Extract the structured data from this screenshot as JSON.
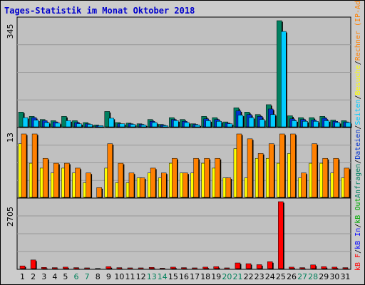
{
  "title": "Tages-Statistik im Monat Oktober 2018",
  "chart_data": [
    {
      "type": "bar",
      "panel": "top",
      "ymax_label": "345",
      "ylim": [
        0,
        345
      ],
      "categories": [
        "1",
        "2",
        "3",
        "4",
        "5",
        "6",
        "7",
        "8",
        "9",
        "10",
        "11",
        "12",
        "13",
        "14",
        "15",
        "16",
        "17",
        "18",
        "19",
        "20",
        "21",
        "22",
        "23",
        "24",
        "25",
        "26",
        "27",
        "28",
        "29",
        "30",
        "31"
      ],
      "series": [
        {
          "name": "Anfragen",
          "color": "#008060",
          "values": [
            48,
            34,
            24,
            20,
            34,
            20,
            14,
            6,
            50,
            14,
            12,
            10,
            24,
            8,
            30,
            24,
            10,
            34,
            30,
            16,
            62,
            48,
            40,
            72,
            345,
            36,
            30,
            30,
            34,
            22,
            20
          ]
        },
        {
          "name": "Dateien",
          "color": "#0033cc",
          "values": [
            0,
            30,
            20,
            16,
            0,
            14,
            10,
            4,
            0,
            10,
            10,
            8,
            18,
            6,
            24,
            18,
            8,
            26,
            24,
            12,
            52,
            40,
            34,
            58,
            0,
            26,
            24,
            22,
            28,
            18,
            16
          ]
        },
        {
          "name": "Seiten",
          "color": "#00ccff",
          "values": [
            30,
            22,
            14,
            12,
            20,
            10,
            8,
            4,
            28,
            10,
            8,
            6,
            14,
            4,
            20,
            14,
            6,
            20,
            18,
            10,
            38,
            30,
            24,
            40,
            310,
            20,
            18,
            18,
            20,
            14,
            14
          ]
        }
      ],
      "legend": [
        "Anfragen",
        "/",
        "Dateien",
        "/",
        "Seiten",
        "/",
        "Besuche",
        "/",
        "Rechner (IP-Adressen)"
      ]
    },
    {
      "type": "bar",
      "panel": "middle",
      "ymax_label": "13",
      "ylim": [
        0,
        13
      ],
      "series": [
        {
          "name": "Besuche",
          "color": "#ffff00",
          "values": [
            11,
            7,
            6,
            5,
            6,
            5,
            3,
            0,
            6,
            3,
            3,
            4,
            5,
            4,
            7,
            5,
            5,
            7,
            6,
            4,
            10,
            4,
            8,
            8,
            7,
            9,
            4,
            7,
            7,
            5,
            4
          ]
        },
        {
          "name": "Rechner (IP-Adressen)",
          "color": "#ff8000",
          "values": [
            13,
            13,
            8,
            7,
            7,
            6,
            5,
            2,
            11,
            7,
            5,
            4,
            6,
            5,
            8,
            5,
            8,
            8,
            8,
            4,
            13,
            12,
            9,
            11,
            13,
            13,
            5,
            11,
            8,
            8,
            6
          ]
        }
      ]
    },
    {
      "type": "bar",
      "panel": "bottom",
      "ymax_label": "2705",
      "ylim": [
        0,
        2705
      ],
      "series": [
        {
          "name": "kB F",
          "color": "#ff0000",
          "values": [
            110,
            350,
            50,
            40,
            60,
            40,
            30,
            10,
            80,
            40,
            30,
            30,
            50,
            20,
            60,
            40,
            30,
            60,
            80,
            30,
            230,
            200,
            160,
            280,
            2705,
            60,
            40,
            150,
            80,
            60,
            40
          ]
        },
        {
          "name": "kB In",
          "color": "#0000ff",
          "values": []
        },
        {
          "name": "kB Out",
          "color": "#00aa00",
          "values": []
        }
      ],
      "legend": [
        "kB F",
        "/",
        "kB In",
        "/",
        "kB Out"
      ]
    }
  ],
  "x_ticks": [
    "1",
    "2",
    "3",
    "4",
    "5",
    "6",
    "7",
    "8",
    "9",
    "10",
    "11",
    "12",
    "13",
    "14",
    "15",
    "16",
    "17",
    "18",
    "19",
    "20",
    "21",
    "22",
    "23",
    "24",
    "25",
    "26",
    "27",
    "28",
    "29",
    "30",
    "31"
  ],
  "weekend_days": [
    6,
    7,
    13,
    14,
    20,
    21,
    27,
    28
  ],
  "weekend_color": "#00805a"
}
